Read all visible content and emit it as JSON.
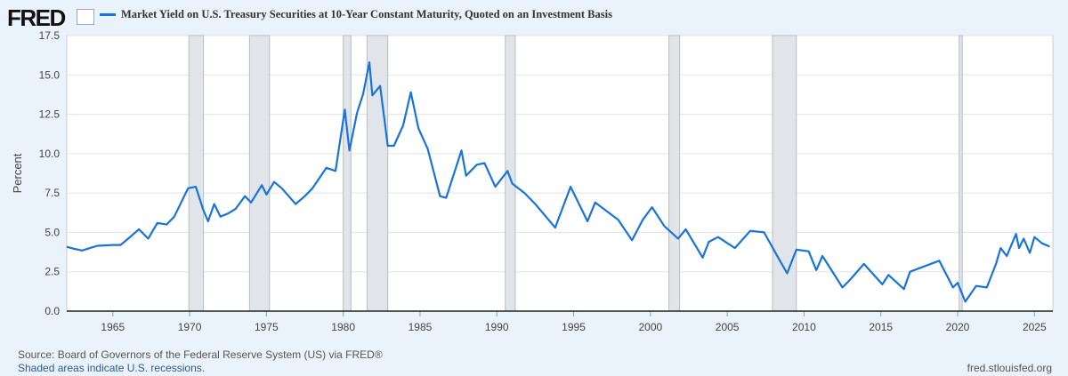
{
  "brand": "FRED",
  "chart_data": {
    "type": "line",
    "title": "Market Yield on U.S. Treasury Securities at 10-Year Constant Maturity, Quoted on an Investment Basis",
    "ylabel": "Percent",
    "xlabel": "",
    "ylim": [
      0,
      17.5
    ],
    "xlim": [
      1962,
      2026.2
    ],
    "yticks": [
      "0.0",
      "2.5",
      "5.0",
      "7.5",
      "10.0",
      "12.5",
      "15.0",
      "17.5"
    ],
    "xticks": [
      "1965",
      "1970",
      "1975",
      "1980",
      "1985",
      "1990",
      "1995",
      "2000",
      "2005",
      "2010",
      "2015",
      "2020",
      "2025"
    ],
    "grid": "horizontal",
    "color": "#1874db",
    "recessions": [
      [
        1969.95,
        1970.9
      ],
      [
        1973.9,
        1975.2
      ],
      [
        1980.0,
        1980.5
      ],
      [
        1981.55,
        1982.9
      ],
      [
        1990.55,
        1991.2
      ],
      [
        2001.2,
        2001.9
      ],
      [
        2007.95,
        2009.5
      ],
      [
        2020.1,
        2020.3
      ]
    ],
    "points": [
      [
        1962.0,
        4.08
      ],
      [
        1962.5,
        3.95
      ],
      [
        1963.0,
        3.85
      ],
      [
        1963.5,
        4.0
      ],
      [
        1964.0,
        4.15
      ],
      [
        1965.0,
        4.2
      ],
      [
        1965.5,
        4.2
      ],
      [
        1966.0,
        4.6
      ],
      [
        1966.7,
        5.2
      ],
      [
        1967.3,
        4.6
      ],
      [
        1967.9,
        5.6
      ],
      [
        1968.5,
        5.5
      ],
      [
        1969.0,
        6.0
      ],
      [
        1969.9,
        7.8
      ],
      [
        1970.4,
        7.9
      ],
      [
        1970.9,
        6.4
      ],
      [
        1971.2,
        5.7
      ],
      [
        1971.6,
        6.8
      ],
      [
        1972.0,
        6.0
      ],
      [
        1972.5,
        6.2
      ],
      [
        1973.0,
        6.5
      ],
      [
        1973.6,
        7.3
      ],
      [
        1974.0,
        6.9
      ],
      [
        1974.7,
        8.0
      ],
      [
        1975.0,
        7.4
      ],
      [
        1975.5,
        8.2
      ],
      [
        1976.0,
        7.8
      ],
      [
        1976.9,
        6.8
      ],
      [
        1977.5,
        7.3
      ],
      [
        1978.0,
        7.8
      ],
      [
        1978.9,
        9.1
      ],
      [
        1979.5,
        8.9
      ],
      [
        1980.1,
        12.8
      ],
      [
        1980.4,
        10.2
      ],
      [
        1980.9,
        12.6
      ],
      [
        1981.3,
        13.8
      ],
      [
        1981.7,
        15.8
      ],
      [
        1981.9,
        13.7
      ],
      [
        1982.4,
        14.3
      ],
      [
        1982.9,
        10.5
      ],
      [
        1983.3,
        10.5
      ],
      [
        1983.9,
        11.8
      ],
      [
        1984.4,
        13.9
      ],
      [
        1984.9,
        11.6
      ],
      [
        1985.5,
        10.3
      ],
      [
        1986.3,
        7.3
      ],
      [
        1986.7,
        7.2
      ],
      [
        1987.7,
        10.2
      ],
      [
        1988.0,
        8.6
      ],
      [
        1988.7,
        9.3
      ],
      [
        1989.2,
        9.4
      ],
      [
        1989.9,
        7.9
      ],
      [
        1990.7,
        8.9
      ],
      [
        1991.0,
        8.1
      ],
      [
        1991.8,
        7.5
      ],
      [
        1992.5,
        6.8
      ],
      [
        1993.8,
        5.3
      ],
      [
        1994.8,
        7.9
      ],
      [
        1995.9,
        5.7
      ],
      [
        1996.4,
        6.9
      ],
      [
        1997.9,
        5.8
      ],
      [
        1998.8,
        4.5
      ],
      [
        1999.5,
        5.8
      ],
      [
        2000.1,
        6.6
      ],
      [
        2000.9,
        5.4
      ],
      [
        2001.8,
        4.6
      ],
      [
        2002.3,
        5.2
      ],
      [
        2003.4,
        3.4
      ],
      [
        2003.8,
        4.4
      ],
      [
        2004.4,
        4.7
      ],
      [
        2005.5,
        4.0
      ],
      [
        2006.5,
        5.1
      ],
      [
        2007.4,
        5.0
      ],
      [
        2008.2,
        3.6
      ],
      [
        2008.9,
        2.4
      ],
      [
        2009.5,
        3.9
      ],
      [
        2010.3,
        3.8
      ],
      [
        2010.8,
        2.6
      ],
      [
        2011.2,
        3.5
      ],
      [
        2012.5,
        1.5
      ],
      [
        2013.0,
        2.0
      ],
      [
        2013.9,
        3.0
      ],
      [
        2015.1,
        1.7
      ],
      [
        2015.5,
        2.3
      ],
      [
        2016.5,
        1.4
      ],
      [
        2016.9,
        2.5
      ],
      [
        2018.8,
        3.2
      ],
      [
        2019.7,
        1.5
      ],
      [
        2020.0,
        1.8
      ],
      [
        2020.5,
        0.6
      ],
      [
        2021.2,
        1.6
      ],
      [
        2021.9,
        1.5
      ],
      [
        2022.5,
        3.0
      ],
      [
        2022.8,
        4.0
      ],
      [
        2023.2,
        3.5
      ],
      [
        2023.8,
        4.9
      ],
      [
        2024.0,
        4.0
      ],
      [
        2024.3,
        4.6
      ],
      [
        2024.7,
        3.7
      ],
      [
        2025.0,
        4.7
      ],
      [
        2025.5,
        4.3
      ],
      [
        2026.0,
        4.1
      ]
    ]
  },
  "footer": {
    "source": "Source: Board of Governors of the Federal Reserve System (US) via FRED®",
    "recessions": "Shaded areas indicate U.S. recessions.",
    "url": "fred.stlouisfed.org"
  }
}
